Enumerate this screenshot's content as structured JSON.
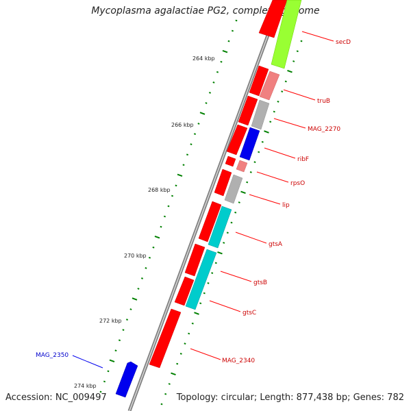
{
  "title": "Mycoplasma agalactiae PG2, complete genome",
  "accession": "Accession: NC_009497",
  "topology": "Topology: circular; Length: 877,438 bp; Genes: 782",
  "ticks": [
    "264 kbp",
    "266 kbp",
    "268 kbp",
    "270 kbp",
    "272 kbp",
    "274 kbp"
  ],
  "genes": [
    {
      "label": "secD",
      "color": "#cc0000"
    },
    {
      "label": "truB",
      "color": "#cc0000"
    },
    {
      "label": "MAG_2270",
      "color": "#cc0000"
    },
    {
      "label": "ribF",
      "color": "#cc0000"
    },
    {
      "label": "rpsO",
      "color": "#cc0000"
    },
    {
      "label": "lip",
      "color": "#cc0000"
    },
    {
      "label": "gtsA",
      "color": "#cc0000"
    },
    {
      "label": "gtsB",
      "color": "#cc0000"
    },
    {
      "label": "gtsC",
      "color": "#cc0000"
    },
    {
      "label": "MAG_2340",
      "color": "#cc0000"
    },
    {
      "label": "MAG_2350",
      "color": "#0000cc"
    }
  ],
  "colors": {
    "backbone": "#808080",
    "cds_forward": "#ff0000",
    "cds_reverse": "#0000ee",
    "tick": "#008000",
    "cog_lime": "#99ff33",
    "cog_pink": "#f08080",
    "cog_grey": "#b0b0b0",
    "cog_blue": "#0000ee",
    "cog_cyan": "#00cccc"
  }
}
